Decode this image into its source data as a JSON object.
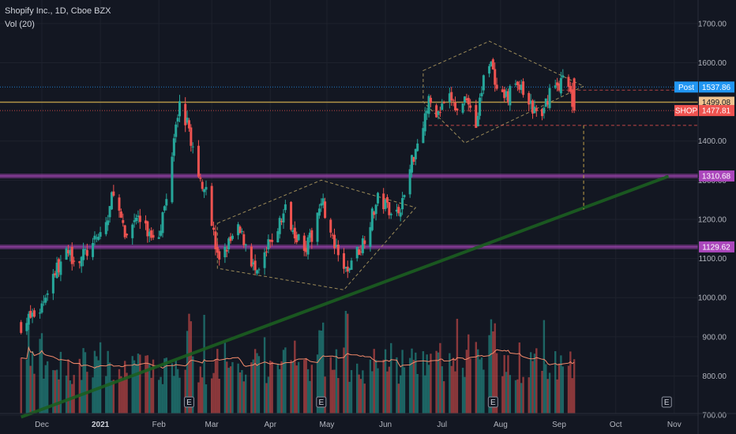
{
  "header": {
    "title": "Shopify Inc., 1D, Cboe BZX",
    "volume_label": "Vol (20)"
  },
  "colors": {
    "background": "#131722",
    "up": "#26a69a",
    "down": "#ef5350",
    "grid": "#1e222d",
    "purple": "#ab47bc",
    "gold": "#c2a14a",
    "trend": "#1b5e20",
    "post_blue": "#2196f3",
    "level_tan": "#f0c38f",
    "shop_red": "#ef5350",
    "volume_ma": "#f48a6b",
    "diamond": "#9b8a58"
  },
  "chart_data": {
    "type": "candlestick",
    "title": "Shopify Inc., 1D, Cboe BZX",
    "y_ticks": [
      "700.00",
      "800.00",
      "900.00",
      "1000.00",
      "1100.00",
      "1200.00",
      "1300.00",
      "1400.00",
      "1500.00",
      "1600.00",
      "1700.00"
    ],
    "ylim": [
      680,
      1740
    ],
    "x_ticks": [
      {
        "label": "Dec",
        "bold": false
      },
      {
        "label": "2021",
        "bold": true
      },
      {
        "label": "Feb",
        "bold": false
      },
      {
        "label": "Mar",
        "bold": false
      },
      {
        "label": "Apr",
        "bold": false
      },
      {
        "label": "May",
        "bold": false
      },
      {
        "label": "Jun",
        "bold": false
      },
      {
        "label": "Jul",
        "bold": false
      },
      {
        "label": "Aug",
        "bold": false
      },
      {
        "label": "Sep",
        "bold": false
      },
      {
        "label": "Oct",
        "bold": false
      },
      {
        "label": "Nov",
        "bold": false
      }
    ],
    "price_anchors": [
      [
        "2020-11-20",
        930
      ],
      [
        "2020-11-30",
        970
      ],
      [
        "2020-12-07",
        1060
      ],
      [
        "2020-12-14",
        1110
      ],
      [
        "2020-12-21",
        1100
      ],
      [
        "2020-12-28",
        1130
      ],
      [
        "2021-01-05",
        1200
      ],
      [
        "2021-01-08",
        1280
      ],
      [
        "2021-01-14",
        1150
      ],
      [
        "2021-01-20",
        1210
      ],
      [
        "2021-01-27",
        1160
      ],
      [
        "2021-02-01",
        1170
      ],
      [
        "2021-02-05",
        1250
      ],
      [
        "2021-02-10",
        1460
      ],
      [
        "2021-02-12",
        1490
      ],
      [
        "2021-02-17",
        1430
      ],
      [
        "2021-02-22",
        1300
      ],
      [
        "2021-02-26",
        1290
      ],
      [
        "2021-03-04",
        1100
      ],
      [
        "2021-03-09",
        1130
      ],
      [
        "2021-03-15",
        1170
      ],
      [
        "2021-03-19",
        1140
      ],
      [
        "2021-03-25",
        1050
      ],
      [
        "2021-03-31",
        1130
      ],
      [
        "2021-04-06",
        1190
      ],
      [
        "2021-04-09",
        1225
      ],
      [
        "2021-04-15",
        1160
      ],
      [
        "2021-04-20",
        1130
      ],
      [
        "2021-04-23",
        1155
      ],
      [
        "2021-04-28",
        1260
      ],
      [
        "2021-05-03",
        1160
      ],
      [
        "2021-05-07",
        1100
      ],
      [
        "2021-05-12",
        1060
      ],
      [
        "2021-05-14",
        1100
      ],
      [
        "2021-05-19",
        1130
      ],
      [
        "2021-05-25",
        1210
      ],
      [
        "2021-05-28",
        1250
      ],
      [
        "2021-06-03",
        1230
      ],
      [
        "2021-06-08",
        1220
      ],
      [
        "2021-06-11",
        1260
      ],
      [
        "2021-06-15",
        1350
      ],
      [
        "2021-06-21",
        1450
      ],
      [
        "2021-06-24",
        1500
      ],
      [
        "2021-06-29",
        1470
      ],
      [
        "2021-07-06",
        1510
      ],
      [
        "2021-07-09",
        1470
      ],
      [
        "2021-07-14",
        1520
      ],
      [
        "2021-07-19",
        1440
      ],
      [
        "2021-07-23",
        1560
      ],
      [
        "2021-07-27",
        1620
      ],
      [
        "2021-07-29",
        1530
      ],
      [
        "2021-08-03",
        1500
      ],
      [
        "2021-08-09",
        1550
      ],
      [
        "2021-08-13",
        1520
      ],
      [
        "2021-08-18",
        1480
      ],
      [
        "2021-08-23",
        1460
      ],
      [
        "2021-08-27",
        1530
      ],
      [
        "2021-09-01",
        1545
      ],
      [
        "2021-09-03",
        1560
      ],
      [
        "2021-09-07",
        1520
      ],
      [
        "2021-09-09",
        1477.81
      ]
    ],
    "current_price": 1477.81,
    "horizontal_levels": [
      {
        "value": 1310.68,
        "label": "1310.68",
        "color": "#ab47bc",
        "style": "band"
      },
      {
        "value": 1129.62,
        "label": "1129.62",
        "color": "#ab47bc",
        "style": "band"
      },
      {
        "value": 1499.08,
        "label": "1499.08",
        "color": "#c2a14a",
        "style": "line"
      },
      {
        "value": 1537.86,
        "label": "1537.86",
        "color": "#2196f3",
        "style": "dotted"
      },
      {
        "value": 1477.81,
        "label": "1477.81",
        "color": "#ef5350",
        "style": "dotted"
      }
    ],
    "axis_badges": [
      {
        "name": "Post",
        "value": 1537.86,
        "label": "1537.86",
        "color": "#2196f3"
      },
      {
        "name": "",
        "value": 1499.08,
        "label": "1499.08",
        "color": "#f0c38f"
      },
      {
        "name": "SHOP",
        "value": 1477.81,
        "label": "1477.81",
        "color": "#ef5350"
      },
      {
        "name": "",
        "value": 1310.68,
        "label": "1310.68",
        "color": "#ab47bc"
      },
      {
        "name": "",
        "value": 1129.62,
        "label": "1129.62",
        "color": "#ab47bc"
      }
    ],
    "trend_line": {
      "from": [
        "2020-11-20",
        695
      ],
      "to": [
        "2021-10-29",
        1310
      ]
    },
    "diamonds": [
      {
        "points": [
          [
            "2021-03-04",
            1190
          ],
          [
            "2021-04-28",
            1300
          ],
          [
            "2021-06-17",
            1230
          ],
          [
            "2021-05-10",
            1020
          ],
          [
            "2021-03-04",
            1075
          ]
        ]
      },
      {
        "points": [
          [
            "2021-06-21",
            1580
          ],
          [
            "2021-07-26",
            1655
          ],
          [
            "2021-09-14",
            1540
          ],
          [
            "2021-07-13",
            1395
          ],
          [
            "2021-06-21",
            1500
          ]
        ]
      }
    ],
    "projection": {
      "from": [
        "2021-06-21",
        1440
      ],
      "to": [
        "2021-09-14",
        1440
      ],
      "vertical_x": "2021-09-14",
      "vertical_to": 1225
    },
    "earnings_markers": [
      "2021-02-17",
      "2021-04-28",
      "2021-07-28",
      "2021-10-28"
    ],
    "earnings_glyph": "E",
    "volume_ma_label": "Vol (20)",
    "volume_range_shares": "relative"
  }
}
